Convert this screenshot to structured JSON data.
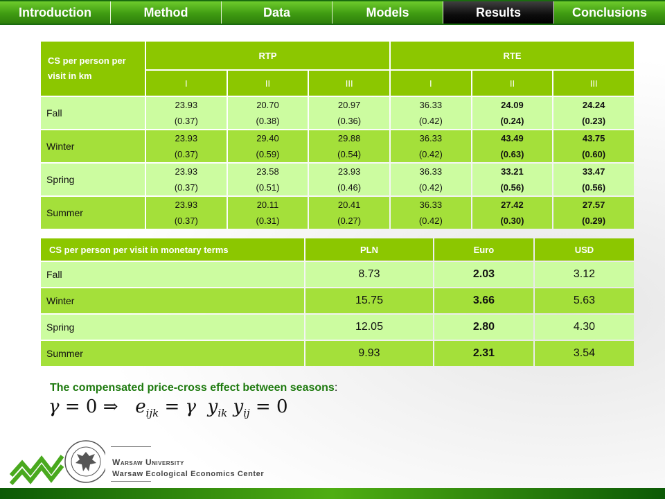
{
  "nav": {
    "tabs": [
      {
        "label": "Introduction"
      },
      {
        "label": "Method"
      },
      {
        "label": "Data"
      },
      {
        "label": "Models"
      },
      {
        "label": "Results",
        "active": true
      },
      {
        "label": "Conclusions"
      }
    ]
  },
  "table1": {
    "corner": "CS per person per visit in km",
    "groups": [
      "RTP",
      "RTE"
    ],
    "subheaders": [
      "I",
      "II",
      "III",
      "I",
      "II",
      "III"
    ],
    "rows": [
      {
        "label": "Fall",
        "cells": [
          [
            "23.93",
            "(0.37)"
          ],
          [
            "20.70",
            "(0.38)"
          ],
          [
            "20.97",
            "(0.36)"
          ],
          [
            "36.33",
            "(0.42)"
          ],
          [
            "24.09",
            "(0.24)"
          ],
          [
            "24.24",
            "(0.23)"
          ]
        ]
      },
      {
        "label": "Winter",
        "cells": [
          [
            "23.93",
            "(0.37)"
          ],
          [
            "29.40",
            "(0.59)"
          ],
          [
            "29.88",
            "(0.54)"
          ],
          [
            "36.33",
            "(0.42)"
          ],
          [
            "43.49",
            "(0.63)"
          ],
          [
            "43.75",
            "(0.60)"
          ]
        ]
      },
      {
        "label": "Spring",
        "cells": [
          [
            "23.93",
            "(0.37)"
          ],
          [
            "23.58",
            "(0.51)"
          ],
          [
            "23.93",
            "(0.46)"
          ],
          [
            "36.33",
            "(0.42)"
          ],
          [
            "33.21",
            "(0.56)"
          ],
          [
            "33.47",
            "(0.56)"
          ]
        ]
      },
      {
        "label": "Summer",
        "cells": [
          [
            "23.93",
            "(0.37)"
          ],
          [
            "20.11",
            "(0.31)"
          ],
          [
            "20.41",
            "(0.27)"
          ],
          [
            "36.33",
            "(0.42)"
          ],
          [
            "27.42",
            "(0.30)"
          ],
          [
            "27.57",
            "(0.29)"
          ]
        ]
      }
    ]
  },
  "table2": {
    "headers": [
      "CS per person per visit in monetary terms",
      "PLN",
      "Euro",
      "USD"
    ],
    "rows": [
      {
        "label": "Fall",
        "values": [
          "8.73",
          "2.03",
          "3.12"
        ]
      },
      {
        "label": "Winter",
        "values": [
          "15.75",
          "3.66",
          "5.63"
        ]
      },
      {
        "label": "Spring",
        "values": [
          "12.05",
          "2.80",
          "4.30"
        ]
      },
      {
        "label": "Summer",
        "values": [
          "9.93",
          "2.31",
          "3.54"
        ]
      }
    ]
  },
  "caption": {
    "text": "The compensated price-cross effect between seasons",
    "colon": ":"
  },
  "formula": {
    "gamma": "γ",
    "eq": "=",
    "zero": "0",
    "implies": "⇒",
    "e": "e",
    "e_sub": "ijk",
    "y": "y",
    "y1_sub": "ik",
    "y2_sub": "ij"
  },
  "footer": {
    "university": "Warsaw University",
    "center": "Warsaw Ecological Economics Center"
  },
  "colors": {
    "header_green": "#8cc700",
    "row_dark": "#a4e03a",
    "row_light": "#ccfca0",
    "caption_green": "#1e7a0f"
  }
}
